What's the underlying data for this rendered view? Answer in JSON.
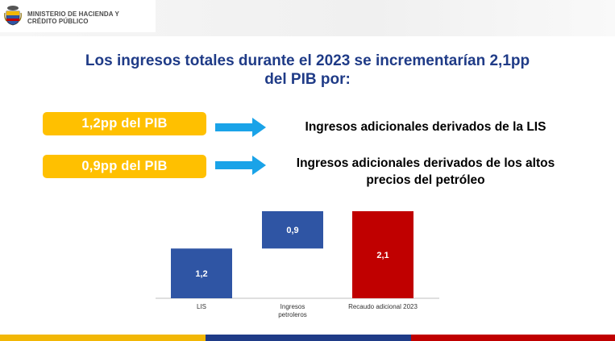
{
  "header": {
    "ministry_line1": "MINISTERIO DE HACIENDA Y",
    "ministry_line2": "CRÉDITO PÚBLICO"
  },
  "headline": {
    "line1": "Los ingresos totales durante el 2023 se incrementarían 2,1pp",
    "line2": "del PIB por:"
  },
  "items": [
    {
      "badge": "1,2pp del PIB",
      "description_line1": "Ingresos adicionales derivados de la LIS",
      "description_line2": ""
    },
    {
      "badge": "0,9pp del PIB",
      "description_line1": "Ingresos adicionales derivados de los altos",
      "description_line2": "precios del petróleo"
    }
  ],
  "colors": {
    "title_blue": "#1f3b87",
    "badge_yellow": "#ffc000",
    "arrow_blue": "#1aa3e8",
    "bar_blue": "#2f55a4",
    "bar_red": "#c00000",
    "flag_yellow": "#f2b705",
    "flag_blue": "#1f3b87",
    "flag_red": "#c00000"
  },
  "chart_data": {
    "type": "bar",
    "subtype": "waterfall",
    "categories": [
      "LIS",
      "Ingresos petroleros",
      "Recaudo adicional 2023"
    ],
    "category_lines": [
      [
        "LIS"
      ],
      [
        "Ingresos",
        "petroleros"
      ],
      [
        "Recaudo adicional 2023"
      ]
    ],
    "values": [
      1.2,
      0.9,
      2.1
    ],
    "bases": [
      0,
      1.2,
      0
    ],
    "labels": [
      "1,2",
      "0,9",
      "2,1"
    ],
    "kinds": [
      "increase",
      "increase",
      "total"
    ],
    "ylim": [
      0,
      2.1
    ],
    "grid": false,
    "legend": "none"
  }
}
